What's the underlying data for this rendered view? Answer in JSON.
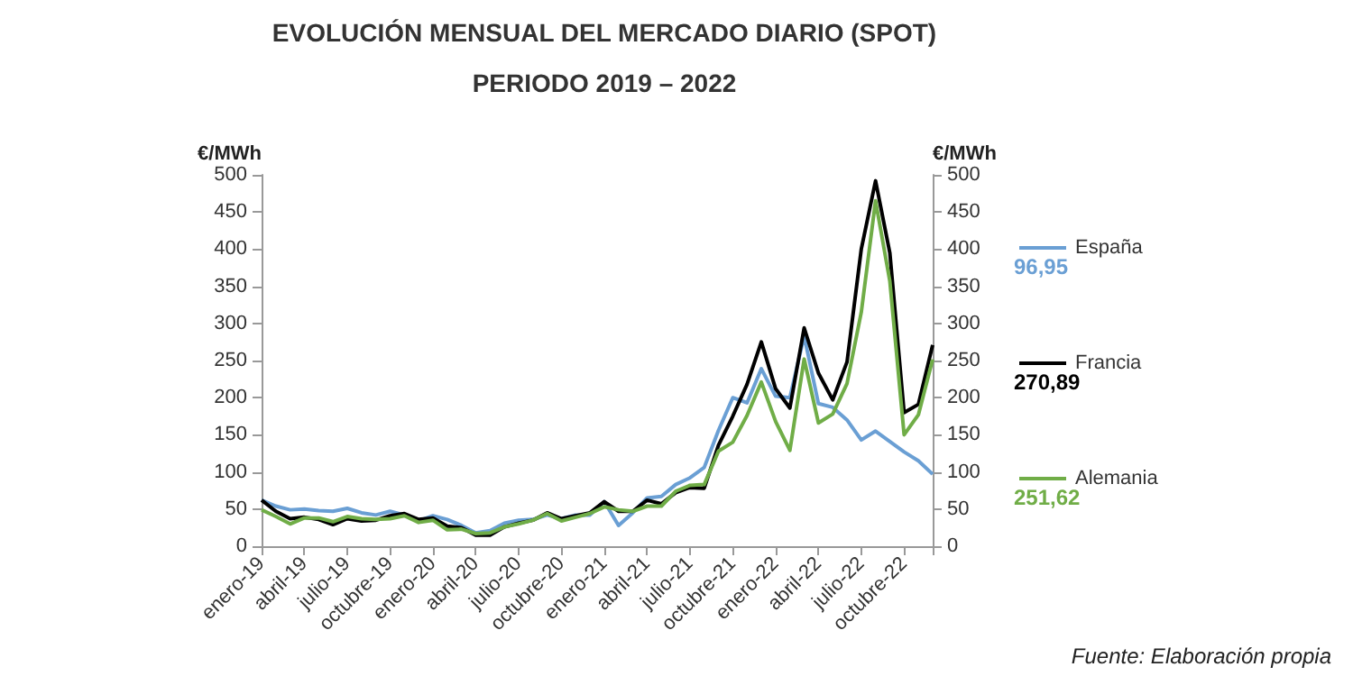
{
  "chart_data": {
    "type": "line",
    "title": "EVOLUCIÓN MENSUAL DEL MERCADO DIARIO (SPOT)",
    "subtitle": "PERIODO 2019 – 2022",
    "ylabel": "€/MWh",
    "y2label": "€/MWh",
    "categories": [
      "enero-19",
      null,
      null,
      "abril-19",
      null,
      null,
      "julio-19",
      null,
      null,
      "octubre-19",
      null,
      null,
      "enero-20",
      null,
      null,
      "abril-20",
      null,
      null,
      "julio-20",
      null,
      null,
      "octubre-20",
      null,
      null,
      "enero-21",
      null,
      null,
      "abril-21",
      null,
      null,
      "julio-21",
      null,
      null,
      "octubre-21",
      null,
      null,
      "enero-22",
      null,
      null,
      "abril-22",
      null,
      null,
      "julio-22",
      null,
      null,
      "octubre-22",
      null,
      null
    ],
    "series": [
      {
        "name": "España",
        "color": "#6a9fd4",
        "values": [
          62,
          54,
          49,
          50,
          48,
          47,
          51,
          45,
          42,
          47,
          42,
          34,
          41,
          36,
          28,
          18,
          21,
          31,
          35,
          36,
          42,
          37,
          42,
          42,
          60,
          28,
          45,
          65,
          67,
          83,
          92,
          106,
          156,
          200,
          193,
          239,
          202,
          200,
          283,
          192,
          187,
          170,
          143,
          155,
          141,
          127,
          115,
          96.95
        ]
      },
      {
        "name": "Francia",
        "color": "#000000",
        "values": [
          62,
          47,
          37,
          39,
          36,
          29,
          37,
          34,
          35,
          41,
          44,
          36,
          38,
          27,
          25,
          15,
          15,
          26,
          31,
          35,
          45,
          37,
          41,
          45,
          60,
          47,
          47,
          62,
          57,
          72,
          79,
          78,
          136,
          175,
          218,
          275,
          212,
          186,
          294,
          233,
          197,
          248,
          400,
          492,
          395,
          180,
          191,
          270.89
        ]
      },
      {
        "name": "Alemania",
        "color": "#70ad47",
        "values": [
          49,
          40,
          30,
          38,
          38,
          33,
          40,
          37,
          36,
          37,
          41,
          32,
          35,
          22,
          23,
          17,
          18,
          26,
          30,
          35,
          44,
          34,
          39,
          44,
          53,
          49,
          47,
          54,
          54,
          74,
          82,
          83,
          128,
          140,
          176,
          221,
          168,
          129,
          252,
          166,
          178,
          219,
          315,
          465,
          357,
          150,
          177,
          251.62
        ]
      }
    ],
    "ylim": [
      0,
      500
    ],
    "yticks": [
      0,
      50,
      100,
      150,
      200,
      250,
      300,
      350,
      400,
      450,
      500
    ],
    "y2lim": [
      0,
      500
    ],
    "y2ticks": [
      0,
      50,
      100,
      150,
      200,
      250,
      300,
      350,
      400,
      450,
      500
    ],
    "grid": false,
    "legend": "right",
    "marker": "none",
    "line_style": "solid",
    "annotations": [
      "96,95",
      "270,89",
      "251,62",
      "Fuente: Elaboración propia"
    ]
  }
}
